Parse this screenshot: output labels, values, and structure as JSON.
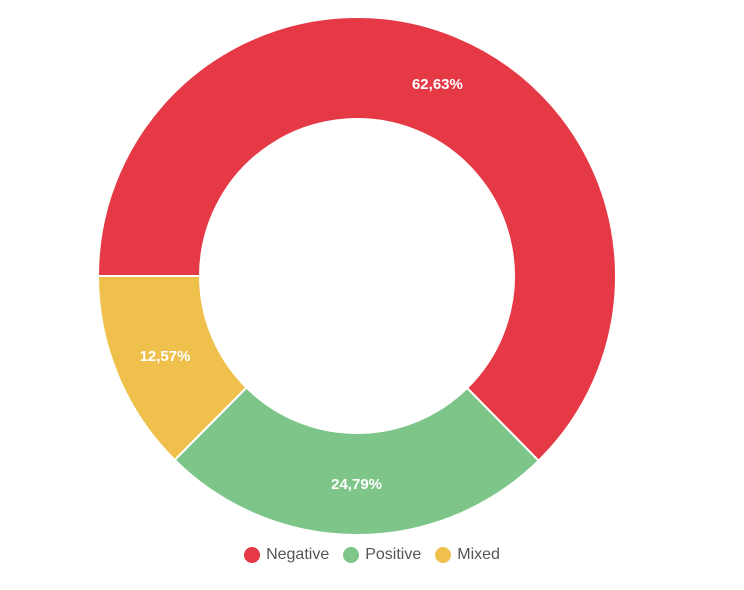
{
  "chart_data": {
    "type": "pie",
    "variant": "donut",
    "categories": [
      "Negative",
      "Positive",
      "Mixed"
    ],
    "values": [
      62.63,
      24.79,
      12.57
    ],
    "labels": [
      "62,63%",
      "24,79%",
      "12,57%"
    ],
    "colors": [
      "#E63946",
      "#7DC588",
      "#EFC04C"
    ],
    "legend_position": "bottom-center"
  }
}
